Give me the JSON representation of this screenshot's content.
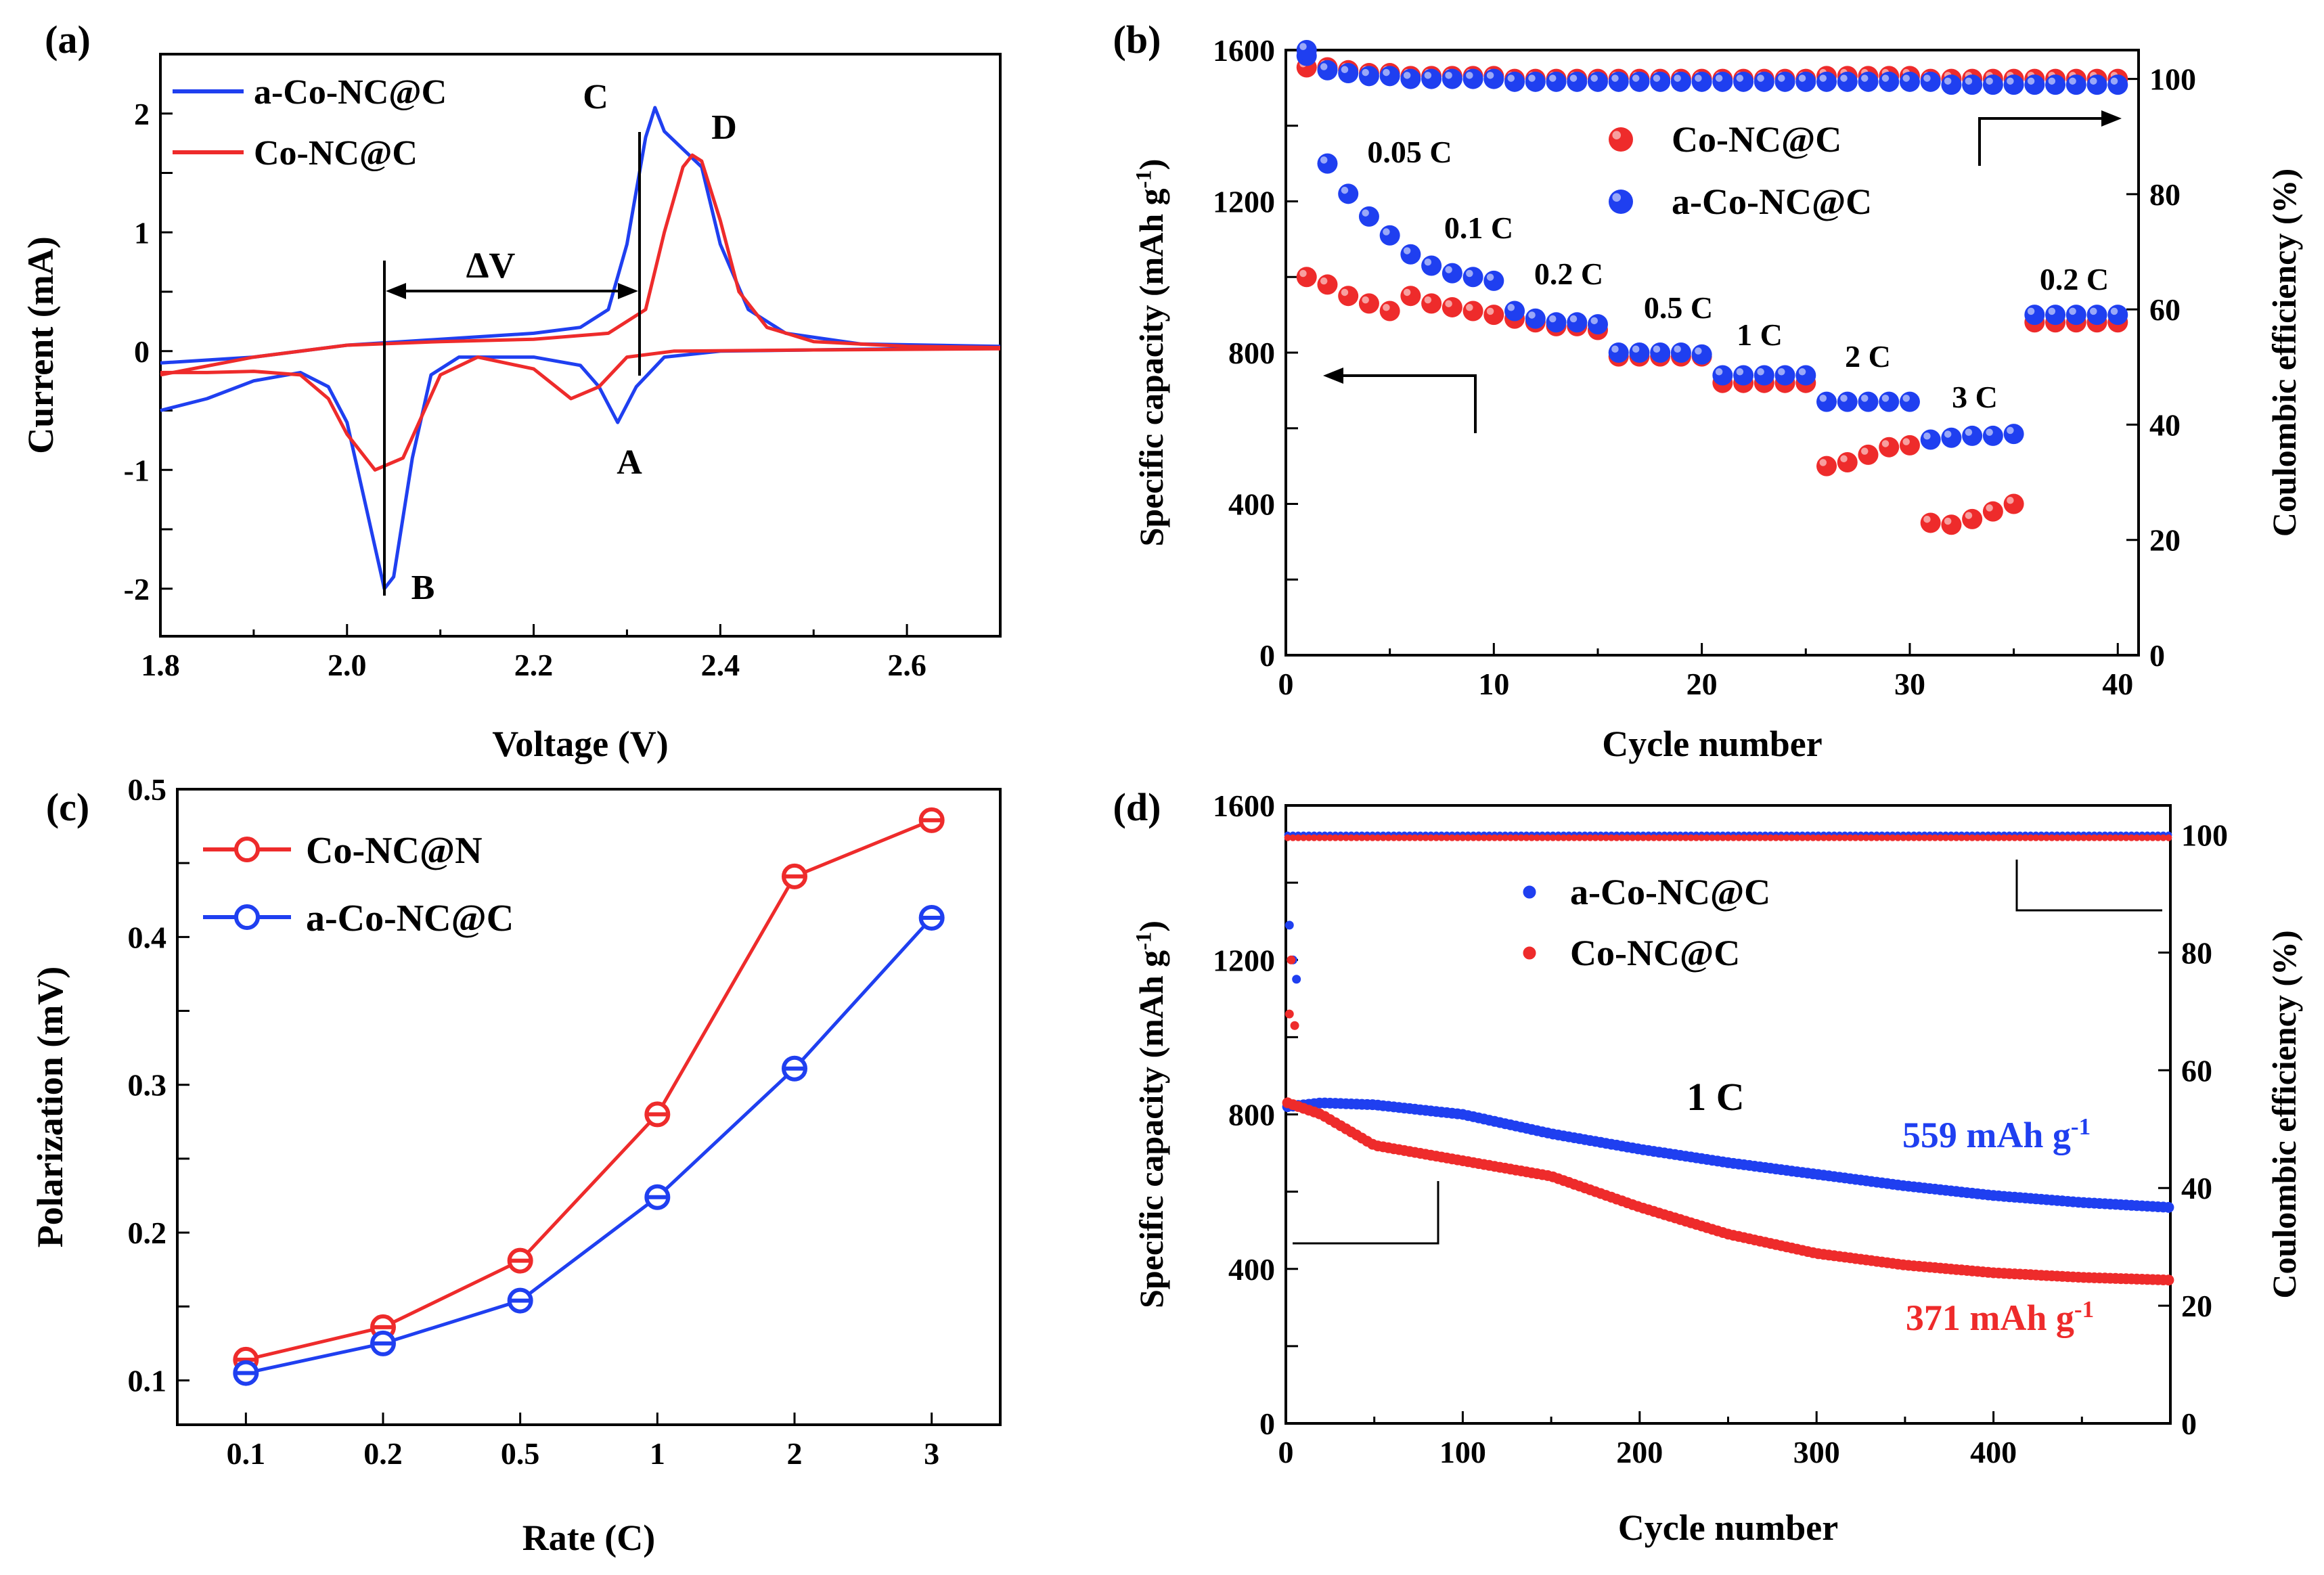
{
  "chart_data": [
    {
      "panel": "(a)",
      "type": "line",
      "xlabel": "Voltage (V)",
      "ylabel": "Current (mA)",
      "xlim": [
        1.8,
        2.7
      ],
      "ylim": [
        -2.4,
        2.5
      ],
      "xticks": [
        "1.8",
        "2.0",
        "2.2",
        "2.4",
        "2.6"
      ],
      "yticks": [
        "-2",
        "-1",
        "0",
        "1",
        "2"
      ],
      "legend": [
        "a-Co-NC@C",
        "Co-NC@C"
      ],
      "legend_position": "top-left",
      "annotations": [
        "C",
        "D",
        "A",
        "B",
        "ΔV"
      ],
      "series": [
        {
          "name": "a-Co-NC@C",
          "color": "#1f3ff0",
          "cathodic": [
            [
              1.8,
              -0.5
            ],
            [
              1.85,
              -0.4
            ],
            [
              1.9,
              -0.25
            ],
            [
              1.95,
              -0.18
            ],
            [
              1.98,
              -0.3
            ],
            [
              2.0,
              -0.6
            ],
            [
              2.02,
              -1.3
            ],
            [
              2.04,
              -2.0
            ],
            [
              2.05,
              -1.9
            ],
            [
              2.07,
              -0.9
            ],
            [
              2.09,
              -0.2
            ],
            [
              2.12,
              -0.05
            ],
            [
              2.2,
              -0.05
            ],
            [
              2.25,
              -0.12
            ],
            [
              2.27,
              -0.3
            ],
            [
              2.29,
              -0.6
            ],
            [
              2.31,
              -0.3
            ],
            [
              2.34,
              -0.05
            ],
            [
              2.4,
              0.0
            ],
            [
              2.5,
              0.01
            ],
            [
              2.6,
              0.02
            ],
            [
              2.7,
              0.03
            ]
          ],
          "anodic": [
            [
              1.8,
              -0.1
            ],
            [
              1.9,
              -0.05
            ],
            [
              2.0,
              0.05
            ],
            [
              2.1,
              0.1
            ],
            [
              2.2,
              0.15
            ],
            [
              2.25,
              0.2
            ],
            [
              2.28,
              0.35
            ],
            [
              2.3,
              0.9
            ],
            [
              2.32,
              1.8
            ],
            [
              2.33,
              2.05
            ],
            [
              2.34,
              1.85
            ],
            [
              2.36,
              1.7
            ],
            [
              2.38,
              1.55
            ],
            [
              2.4,
              0.9
            ],
            [
              2.43,
              0.35
            ],
            [
              2.47,
              0.15
            ],
            [
              2.55,
              0.06
            ],
            [
              2.7,
              0.04
            ]
          ]
        },
        {
          "name": "Co-NC@C",
          "color": "#ee2b2b",
          "cathodic": [
            [
              1.8,
              -0.18
            ],
            [
              1.85,
              -0.18
            ],
            [
              1.9,
              -0.17
            ],
            [
              1.95,
              -0.2
            ],
            [
              1.98,
              -0.4
            ],
            [
              2.0,
              -0.7
            ],
            [
              2.03,
              -1.0
            ],
            [
              2.06,
              -0.9
            ],
            [
              2.08,
              -0.55
            ],
            [
              2.1,
              -0.2
            ],
            [
              2.14,
              -0.05
            ],
            [
              2.2,
              -0.15
            ],
            [
              2.24,
              -0.4
            ],
            [
              2.27,
              -0.3
            ],
            [
              2.3,
              -0.05
            ],
            [
              2.35,
              0.0
            ],
            [
              2.5,
              0.01
            ],
            [
              2.7,
              0.02
            ]
          ],
          "anodic": [
            [
              1.8,
              -0.2
            ],
            [
              1.9,
              -0.05
            ],
            [
              2.0,
              0.05
            ],
            [
              2.1,
              0.08
            ],
            [
              2.2,
              0.1
            ],
            [
              2.28,
              0.15
            ],
            [
              2.32,
              0.35
            ],
            [
              2.34,
              1.0
            ],
            [
              2.36,
              1.55
            ],
            [
              2.37,
              1.65
            ],
            [
              2.38,
              1.6
            ],
            [
              2.4,
              1.1
            ],
            [
              2.42,
              0.5
            ],
            [
              2.45,
              0.2
            ],
            [
              2.5,
              0.08
            ],
            [
              2.6,
              0.04
            ],
            [
              2.7,
              0.03
            ]
          ]
        }
      ]
    },
    {
      "panel": "(b)",
      "type": "scatter",
      "xlabel": "Cycle number",
      "ylabel": "Specific capacity (mAh g-1)",
      "ylabel_right": "Coulombic efficiency (%)",
      "xlim": [
        0,
        41
      ],
      "ylim": [
        0,
        1600
      ],
      "ylim_right": [
        0,
        105
      ],
      "xticks": [
        "0",
        "10",
        "20",
        "30",
        "40"
      ],
      "yticks": [
        "0",
        "400",
        "800",
        "1200",
        "1600"
      ],
      "yticks_right": [
        "0",
        "20",
        "40",
        "60",
        "80",
        "100"
      ],
      "legend": [
        "Co-NC@C",
        "a-Co-NC@C"
      ],
      "legend_position": "top-right",
      "rate_labels": [
        "0.05 C",
        "0.1 C",
        "0.2 C",
        "0.5 C",
        "1 C",
        "2 C",
        "3 C",
        "0.2 C"
      ],
      "series": [
        {
          "name": "Co-NC@C",
          "color": "#ee2b2b",
          "capacity": [
            1000,
            980,
            950,
            930,
            910,
            950,
            930,
            920,
            910,
            900,
            890,
            880,
            870,
            870,
            860,
            790,
            790,
            790,
            790,
            790,
            720,
            720,
            720,
            720,
            720,
            500,
            510,
            530,
            550,
            555,
            350,
            345,
            360,
            380,
            400,
            880,
            880,
            880,
            880,
            880
          ],
          "efficiency": [
            102,
            102,
            101.5,
            101,
            101,
            100.5,
            100.5,
            100.5,
            100.5,
            100.5,
            100,
            100,
            100,
            100,
            100,
            100,
            100,
            100,
            100,
            100,
            100,
            100,
            100,
            100,
            100,
            100.5,
            100.5,
            100.5,
            100.5,
            100.5,
            100,
            100,
            100,
            100,
            100,
            100,
            100,
            100,
            100,
            100
          ]
        },
        {
          "name": "a-Co-NC@C",
          "color": "#1f3ff0",
          "capacity": [
            1600,
            1300,
            1220,
            1160,
            1110,
            1060,
            1030,
            1010,
            1000,
            990,
            910,
            890,
            880,
            880,
            875,
            800,
            800,
            800,
            800,
            795,
            740,
            740,
            740,
            740,
            740,
            670,
            670,
            670,
            670,
            670,
            570,
            575,
            580,
            580,
            585,
            900,
            900,
            900,
            900,
            900
          ],
          "efficiency": [
            104,
            101.5,
            101,
            100.5,
            100.5,
            100,
            100,
            100,
            100,
            100,
            99.5,
            99.5,
            99.5,
            99.5,
            99.5,
            99.5,
            99.5,
            99.5,
            99.5,
            99.5,
            99.5,
            99.5,
            99.5,
            99.5,
            99.5,
            99.5,
            99.5,
            99.5,
            99.5,
            99.5,
            99.5,
            99,
            99,
            99,
            99,
            99,
            99,
            99,
            99,
            99
          ]
        }
      ]
    },
    {
      "panel": "(c)",
      "type": "line",
      "xlabel": "Rate (C)",
      "ylabel": "Polarization (mV)",
      "categories": [
        "0.1",
        "0.2",
        "0.5",
        "1",
        "2",
        "3"
      ],
      "ylim": [
        0.07,
        0.5
      ],
      "yticks": [
        "0.1",
        "0.2",
        "0.3",
        "0.4",
        "0.5"
      ],
      "legend": [
        "Co-NC@N",
        "a-Co-NC@C"
      ],
      "legend_position": "top-left",
      "series": [
        {
          "name": "Co-NC@N",
          "color": "#ee2b2b",
          "values": [
            0.114,
            0.136,
            0.181,
            0.28,
            0.441,
            0.479
          ]
        },
        {
          "name": "a-Co-NC@C",
          "color": "#1f3ff0",
          "values": [
            0.105,
            0.125,
            0.154,
            0.224,
            0.311,
            0.413
          ]
        }
      ]
    },
    {
      "panel": "(d)",
      "type": "scatter",
      "xlabel": "Cycle number",
      "ylabel": "Specific capacity (mAh g-1)",
      "ylabel_right": "Coulombic efficiency (%)",
      "xlim": [
        0,
        500
      ],
      "ylim": [
        0,
        1600
      ],
      "ylim_right": [
        0,
        105
      ],
      "xticks": [
        "0",
        "100",
        "200",
        "300",
        "400"
      ],
      "yticks": [
        "0",
        "400",
        "800",
        "1200",
        "1600"
      ],
      "yticks_right": [
        "0",
        "20",
        "40",
        "60",
        "80",
        "100"
      ],
      "legend": [
        "a-Co-NC@C",
        "Co-NC@C"
      ],
      "legend_position": "top-right",
      "annotations": [
        "1 C",
        "559 mAh g-1",
        "371 mAh g-1"
      ],
      "series": [
        {
          "name": "a-Co-NC@C",
          "color": "#1f3ff0",
          "capacity_points": [
            [
              1,
              820
            ],
            [
              20,
              830
            ],
            [
              50,
              825
            ],
            [
              100,
              800
            ],
            [
              150,
              750
            ],
            [
              200,
              710
            ],
            [
              250,
              675
            ],
            [
              300,
              645
            ],
            [
              350,
              615
            ],
            [
              400,
              590
            ],
            [
              450,
              572
            ],
            [
              500,
              559
            ]
          ],
          "efficiency": 100
        },
        {
          "name": "Co-NC@C",
          "color": "#ee2b2b",
          "capacity_points": [
            [
              1,
              830
            ],
            [
              20,
              800
            ],
            [
              50,
              720
            ],
            [
              100,
              680
            ],
            [
              150,
              640
            ],
            [
              200,
              560
            ],
            [
              250,
              490
            ],
            [
              300,
              440
            ],
            [
              350,
              410
            ],
            [
              400,
              390
            ],
            [
              450,
              378
            ],
            [
              500,
              371
            ]
          ],
          "efficiency": 99.5
        }
      ]
    }
  ]
}
